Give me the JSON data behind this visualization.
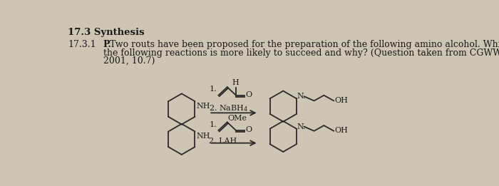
{
  "bg_color": "#cfc5b4",
  "title_text": "17.3 Synthesis",
  "section_num": "17.3.1",
  "body_text_bold": "P.",
  "body_text": " Two routs have been proposed for the preparation of the following amino alcohol. Which of\nthe following reactions is more likely to succeed and why? (Question taken from CGWW\n2001, 10.7)",
  "text_color": "#1a1a1a",
  "struct_color": "#2a2a2a",
  "line_width": 1.3
}
